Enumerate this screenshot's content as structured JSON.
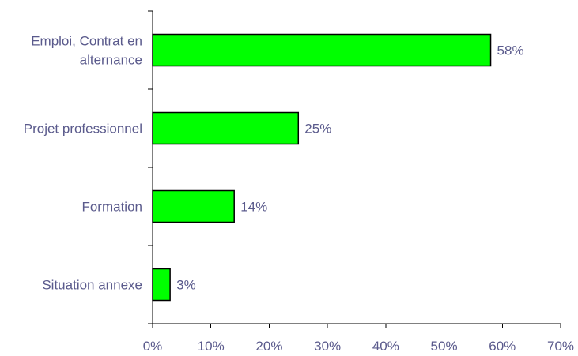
{
  "chart_data": {
    "type": "bar",
    "orientation": "horizontal",
    "categories": [
      "Emploi, Contrat en alternance",
      "Projet professionnel",
      "Formation",
      "Situation annexe"
    ],
    "category_label_lines": [
      [
        "Emploi, Contrat en",
        "alternance"
      ],
      [
        "Projet professionnel"
      ],
      [
        "Formation"
      ],
      [
        "Situation annexe"
      ]
    ],
    "values": [
      58,
      25,
      14,
      3
    ],
    "data_labels": [
      "58%",
      "25%",
      "14%",
      "3%"
    ],
    "x_ticks": [
      0,
      10,
      20,
      30,
      40,
      50,
      60,
      70
    ],
    "x_tick_labels": [
      "0%",
      "10%",
      "20%",
      "30%",
      "40%",
      "50%",
      "60%",
      "70%"
    ],
    "xlim": [
      0,
      70
    ],
    "title": "",
    "xlabel": "",
    "ylabel": "",
    "grid": false,
    "legend": "none",
    "colors": {
      "bar_fill": "#00ff00",
      "bar_stroke": "#000000",
      "text": "#5a5a8c",
      "axis": "#000000"
    }
  }
}
